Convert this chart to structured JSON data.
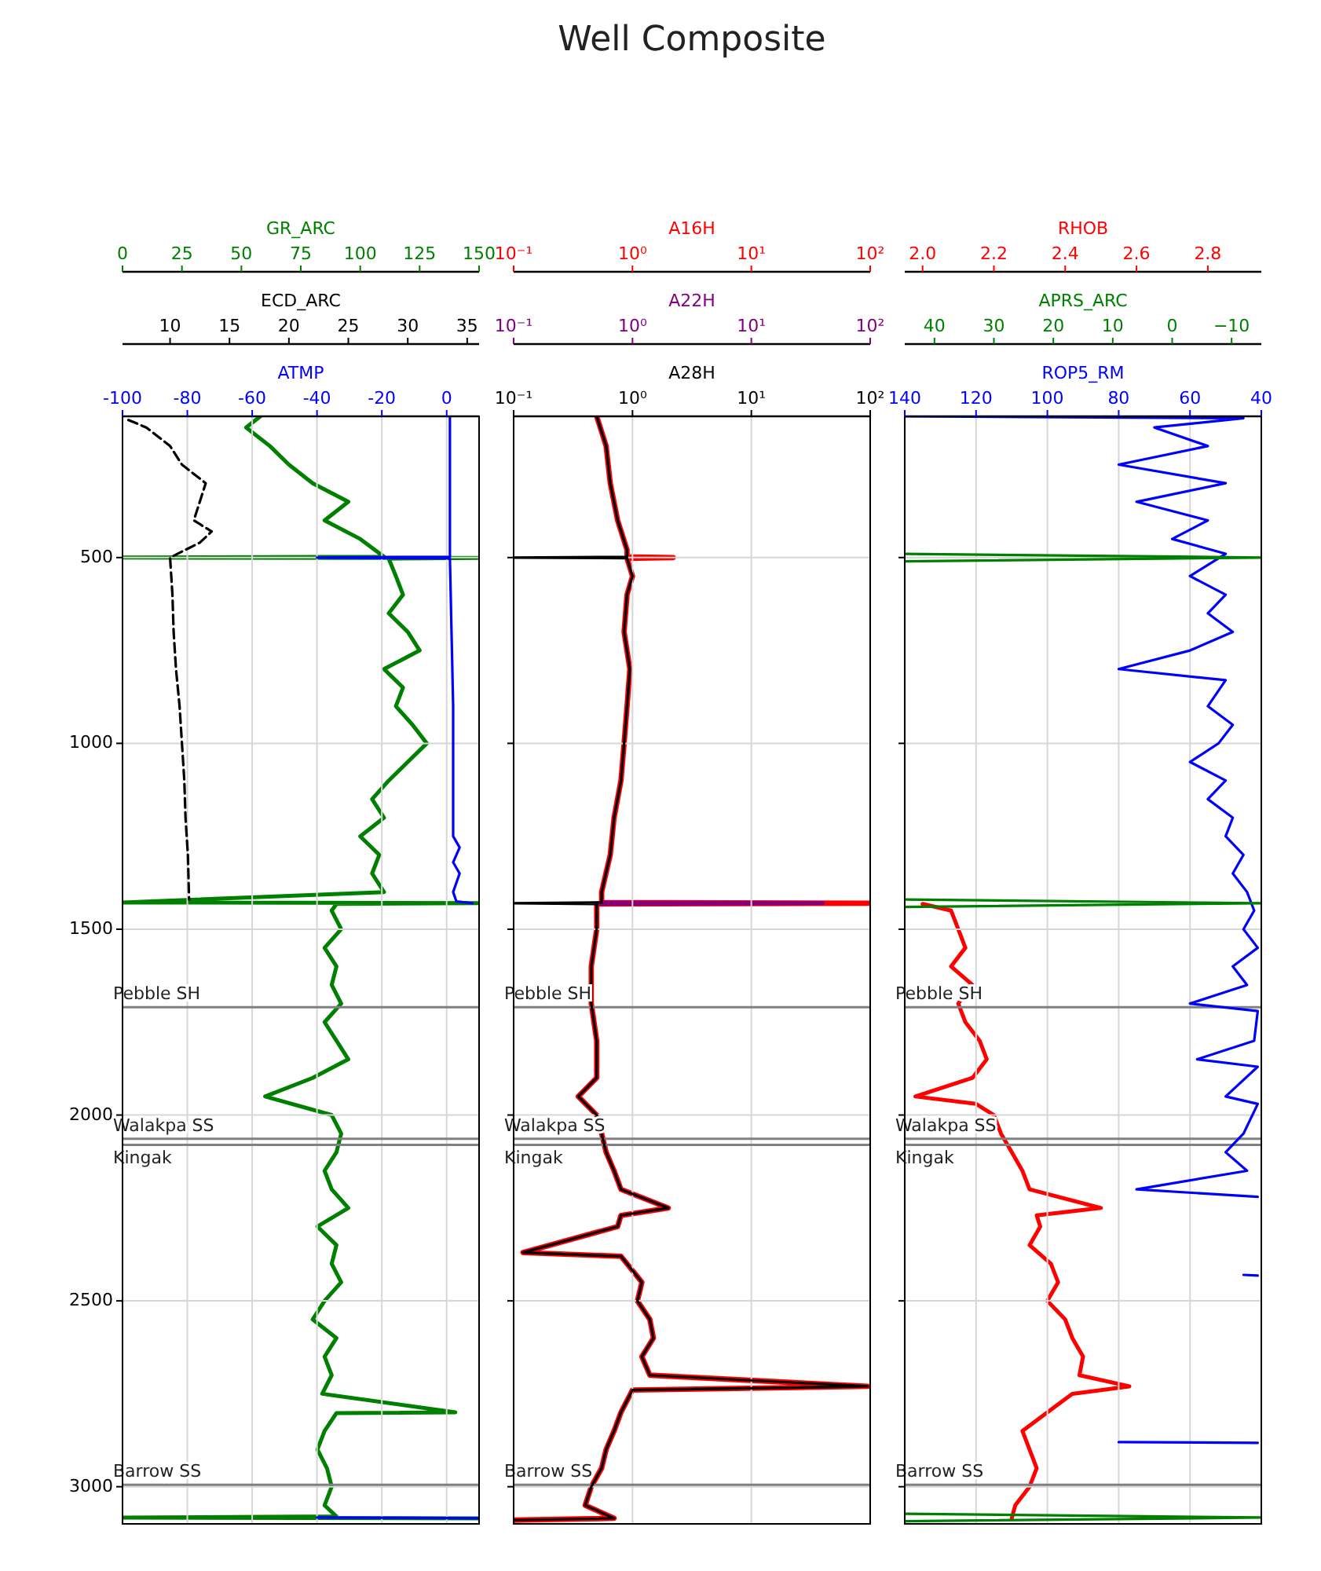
{
  "chart_data": [
    {
      "type": "line",
      "xlim": [
        -100,
        10
      ],
      "xticks": [
        -100,
        -80,
        -60,
        -40,
        -20,
        0
      ],
      "x2lim": [
        6,
        36
      ],
      "x2ticks": [
        10,
        15,
        20,
        25,
        30,
        35
      ],
      "ylim": [
        3100,
        120
      ],
      "yticks": [
        500,
        1000,
        1500,
        2000,
        2500,
        3000
      ],
      "grid": true,
      "ref_lines": [
        {
          "axis": "y",
          "value": 1710,
          "label": "Pebble SH",
          "color": "#808080"
        },
        {
          "axis": "y",
          "value": 2064,
          "label": "Walakpa SS",
          "color": "#808080"
        },
        {
          "axis": "y",
          "value": 2080,
          "label": "Kingak",
          "color": "#808080"
        },
        {
          "axis": "y",
          "value": 2995,
          "label": "Barrow SS",
          "color": "#808080"
        }
      ],
      "series": [
        {
          "name": "ATMP",
          "color": "#0000ff",
          "x": [
            1,
            1,
            1,
            -40,
            1,
            1.5,
            2,
            2,
            2,
            4,
            2,
            4,
            2,
            3,
            8,
            null,
            -40,
            10
          ],
          "values": [
            120,
            300,
            498,
            500,
            502,
            700,
            900,
            1100,
            1250,
            1280,
            1320,
            1350,
            1400,
            1425,
            1430,
            null,
            3083,
            3085
          ]
        },
        {
          "name": "ECD_ARC",
          "color": "#000000",
          "axis": "x2",
          "line_style": "dashed",
          "x": [
            6.5,
            8,
            10,
            11,
            13,
            12.5,
            12,
            13.5,
            12.5,
            10,
            10.2,
            10.3,
            10.5,
            10.8,
            11,
            11.2,
            11.3,
            11.5,
            11.6
          ],
          "values": [
            130,
            150,
            200,
            250,
            300,
            350,
            400,
            430,
            460,
            500,
            600,
            700,
            800,
            900,
            1000,
            1100,
            1200,
            1300,
            1420
          ]
        }
      ]
    },
    {
      "type": "line",
      "xlim": [
        0,
        150
      ],
      "xticks": [
        0,
        25,
        50,
        75,
        100,
        125,
        150
      ],
      "ylim": [
        3100,
        120
      ],
      "tick_labels": "x",
      "series": [
        {
          "name": "GR_ARC",
          "color": "#008000",
          "x": [
            58,
            52,
            62,
            70,
            80,
            95,
            85,
            100,
            110,
            0,
            150,
            112,
            115,
            118,
            112,
            120,
            125,
            110,
            118,
            115,
            122,
            128,
            120,
            112,
            105,
            110,
            100,
            108,
            105,
            110,
            0,
            150,
            90,
            88,
            92,
            85,
            90,
            88,
            92,
            85,
            90,
            95,
            80,
            60,
            88,
            92,
            90,
            85,
            88,
            95,
            82,
            90,
            88,
            92,
            85,
            80,
            90,
            85,
            88,
            84,
            140,
            90,
            85,
            82,
            86,
            88,
            85,
            90,
            0,
            150
          ],
          "values": [
            120,
            150,
            200,
            250,
            300,
            350,
            400,
            450,
            498,
            500,
            501,
            503,
            550,
            600,
            650,
            700,
            750,
            800,
            850,
            900,
            950,
            1000,
            1050,
            1100,
            1150,
            1200,
            1250,
            1300,
            1350,
            1400,
            1428,
            1430,
            1432,
            1450,
            1500,
            1550,
            1600,
            1650,
            1700,
            1750,
            1800,
            1850,
            1900,
            1950,
            2000,
            2050,
            2100,
            2150,
            2200,
            2250,
            2300,
            2350,
            2400,
            2450,
            2500,
            2550,
            2600,
            2650,
            2700,
            2750,
            2800,
            2802,
            2850,
            2900,
            2950,
            3000,
            3050,
            3080,
            3083,
            3085
          ]
        }
      ]
    },
    {
      "type": "line",
      "title": "Well Composite",
      "log": "x",
      "xlim": [
        0.1,
        100
      ],
      "xticks": [
        {
          "value": 0.1,
          "label": "10⁻¹"
        },
        {
          "value": 1,
          "label": "10⁰"
        },
        {
          "value": 10,
          "label": "10¹"
        },
        {
          "value": 100,
          "label": "10²"
        }
      ],
      "ylim": [
        3100,
        120
      ],
      "yticks": [
        500,
        1000,
        1500,
        2000,
        2500,
        3000
      ],
      "tick_labels": "x",
      "grid": true,
      "ref_lines": [
        {
          "axis": "y",
          "value": 1710,
          "label": "Pebble SH",
          "color": "#808080"
        },
        {
          "axis": "y",
          "value": 2064,
          "label": "Walakpa SS",
          "color": "#808080"
        },
        {
          "axis": "y",
          "value": 2080,
          "label": "Kingak",
          "color": "#808080"
        },
        {
          "axis": "y",
          "value": 2995,
          "label": "Barrow SS",
          "color": "#808080"
        }
      ],
      "series": [
        {
          "name": "A28H",
          "color": "#000000",
          "x": [
            0.5,
            0.6,
            0.65,
            0.75,
            0.9,
            0.9,
            0.1,
            0.9,
            1.0,
            0.9,
            0.85,
            0.95,
            0.9,
            0.85,
            0.8,
            0.7,
            0.65,
            0.55,
            0.55,
            0.1,
            0.5,
            0.5,
            0.45,
            0.45,
            0.5,
            0.5,
            0.35,
            0.5,
            0.55,
            0.6,
            0.7,
            0.8,
            2,
            0.8,
            0.75,
            0.12,
            0.8,
            0.9,
            1.2,
            1.1,
            1.4,
            1.5,
            1.2,
            1.4,
            95,
            1.0,
            0.8,
            0.7,
            0.6,
            0.55,
            0.45,
            0.4,
            0.7,
            0.1
          ],
          "values": [
            120,
            200,
            300,
            400,
            480,
            498,
            500,
            502,
            550,
            600,
            700,
            800,
            900,
            1000,
            1100,
            1200,
            1300,
            1400,
            1428,
            1430,
            1432,
            1500,
            1600,
            1700,
            1800,
            1900,
            1950,
            2000,
            2050,
            2100,
            2150,
            2200,
            2250,
            2270,
            2300,
            2370,
            2380,
            2400,
            2450,
            2500,
            2550,
            2600,
            2650,
            2700,
            2730,
            2740,
            2800,
            2850,
            2900,
            2950,
            3000,
            3050,
            3085,
            3090
          ]
        }
      ]
    },
    {
      "type": "line",
      "log": "x",
      "xlim": [
        0.1,
        100
      ],
      "xticks": [
        {
          "value": 0.1,
          "label": "10⁻¹"
        },
        {
          "value": 1,
          "label": "10⁰"
        },
        {
          "value": 10,
          "label": "10¹"
        },
        {
          "value": 100,
          "label": "10²"
        }
      ],
      "ylim": [
        3100,
        120
      ],
      "tick_labels": "x",
      "series": [
        {
          "name": "A22H",
          "color": "#800080",
          "x": [
            0.55,
            40,
            0.5
          ],
          "values": [
            1428,
            1430,
            1432
          ]
        }
      ]
    },
    {
      "type": "line",
      "log": "x",
      "xlim": [
        0.1,
        100
      ],
      "xticks": [
        {
          "value": 0.1,
          "label": "10⁻¹"
        },
        {
          "value": 1,
          "label": "10⁰"
        },
        {
          "value": 10,
          "label": "10¹"
        },
        {
          "value": 100,
          "label": "10²"
        }
      ],
      "ylim": [
        3100,
        120
      ],
      "tick_labels": "x",
      "series": [
        {
          "name": "A16H",
          "color": "#ff0000",
          "x": [
            0.5,
            0.6,
            0.65,
            0.75,
            0.9,
            0.9,
            2.2,
            0.9,
            1.0,
            0.9,
            0.85,
            0.95,
            0.9,
            0.85,
            0.8,
            0.7,
            0.65,
            0.55,
            0.55,
            100,
            0.5,
            0.5,
            0.45,
            0.45,
            0.5,
            0.5,
            0.35,
            0.5,
            0.55,
            0.6,
            0.7,
            0.8,
            2,
            0.8,
            0.75,
            0.12,
            0.8,
            0.9,
            1.2,
            1.1,
            1.4,
            1.5,
            1.2,
            1.4,
            95,
            1.0,
            0.8,
            0.7,
            0.6,
            0.55,
            0.45,
            0.4,
            0.7,
            0.1
          ],
          "values": [
            120,
            200,
            300,
            400,
            480,
            498,
            500,
            502,
            550,
            600,
            700,
            800,
            900,
            1000,
            1100,
            1200,
            1300,
            1400,
            1428,
            1430,
            1432,
            1500,
            1600,
            1700,
            1800,
            1900,
            1950,
            2000,
            2050,
            2100,
            2150,
            2200,
            2250,
            2270,
            2300,
            2370,
            2380,
            2400,
            2450,
            2500,
            2550,
            2600,
            2650,
            2700,
            2730,
            2740,
            2800,
            2850,
            2900,
            2950,
            3000,
            3050,
            3085,
            3090
          ]
        }
      ]
    },
    {
      "type": "line",
      "xlim": [
        140,
        40
      ],
      "xticks": [
        140,
        120,
        100,
        80,
        60,
        40
      ],
      "x2lim": [
        45,
        -15
      ],
      "x2ticks": [
        40,
        30,
        20,
        10,
        0,
        {
          "value": -10,
          "label": "−10"
        }
      ],
      "ylim": [
        3100,
        120
      ],
      "yticks": [
        500,
        1000,
        1500,
        2000,
        2500,
        3000
      ],
      "tick_labels": "x",
      "grid": true,
      "ref_lines": [
        {
          "axis": "y",
          "value": 1710,
          "label": "Pebble SH",
          "color": "#808080"
        },
        {
          "axis": "y",
          "value": 2064,
          "label": "Walakpa SS",
          "color": "#808080"
        },
        {
          "axis": "y",
          "value": 2080,
          "label": "Kingak",
          "color": "#808080"
        },
        {
          "axis": "y",
          "value": 2995,
          "label": "Barrow SS",
          "color": "#808080"
        }
      ],
      "series": [
        {
          "name": "ROP5_RM",
          "color": "#0000ff",
          "x": [
            140,
            45,
            70,
            55,
            80,
            50,
            75,
            55,
            65,
            50,
            60,
            50,
            55,
            48,
            60,
            80,
            50,
            55,
            48,
            52,
            60,
            50,
            55,
            48,
            50,
            45,
            48,
            44,
            42,
            45,
            41,
            48,
            44,
            60,
            41,
            42,
            58,
            41,
            50,
            41,
            45,
            50,
            44,
            75,
            41,
            null,
            45,
            41,
            null,
            80,
            41
          ],
          "values": [
            120,
            125,
            150,
            200,
            250,
            300,
            350,
            400,
            450,
            490,
            550,
            600,
            650,
            700,
            750,
            800,
            830,
            900,
            950,
            1000,
            1050,
            1100,
            1150,
            1200,
            1250,
            1300,
            1350,
            1400,
            1450,
            1500,
            1550,
            1600,
            1650,
            1700,
            1720,
            1800,
            1850,
            1870,
            1950,
            1970,
            2050,
            2100,
            2150,
            2200,
            2220,
            null,
            2430,
            2432,
            null,
            2880,
            2882
          ]
        },
        {
          "name": "APRS_ARC",
          "color": "#008000",
          "axis": "x2",
          "x": [
            45,
            -15,
            45,
            null,
            45,
            -15,
            45,
            null,
            45,
            -15,
            45
          ],
          "values": [
            490,
            500,
            510,
            null,
            1420,
            1430,
            1440,
            null,
            3073,
            3083,
            3093
          ]
        }
      ]
    },
    {
      "type": "line",
      "xlim": [
        1.95,
        2.95
      ],
      "xticks": [
        {
          "value": 2.0,
          "label": "2.0"
        },
        2.2,
        2.4,
        2.6,
        2.8
      ],
      "ylim": [
        3100,
        120
      ],
      "tick_labels": "x",
      "series": [
        {
          "name": "RHOB",
          "color": "#ff0000",
          "x": [
            2.0,
            2.08,
            2.1,
            2.12,
            2.08,
            2.14,
            2.1,
            2.12,
            2.16,
            2.18,
            2.14,
            1.98,
            2.15,
            2.2,
            2.22,
            2.25,
            2.28,
            2.3,
            2.5,
            2.32,
            2.33,
            2.3,
            2.36,
            2.38,
            2.35,
            2.4,
            2.42,
            2.45,
            2.44,
            2.58,
            2.42,
            2.35,
            2.28,
            2.3,
            2.32,
            2.3,
            2.26,
            2.25
          ],
          "values": [
            1432,
            1450,
            1500,
            1550,
            1600,
            1650,
            1700,
            1750,
            1800,
            1850,
            1900,
            1950,
            1970,
            2000,
            2050,
            2100,
            2150,
            2200,
            2250,
            2270,
            2300,
            2350,
            2400,
            2450,
            2500,
            2550,
            2600,
            2650,
            2700,
            2730,
            2750,
            2800,
            2850,
            2900,
            2950,
            3000,
            3050,
            3085
          ]
        }
      ]
    }
  ]
}
